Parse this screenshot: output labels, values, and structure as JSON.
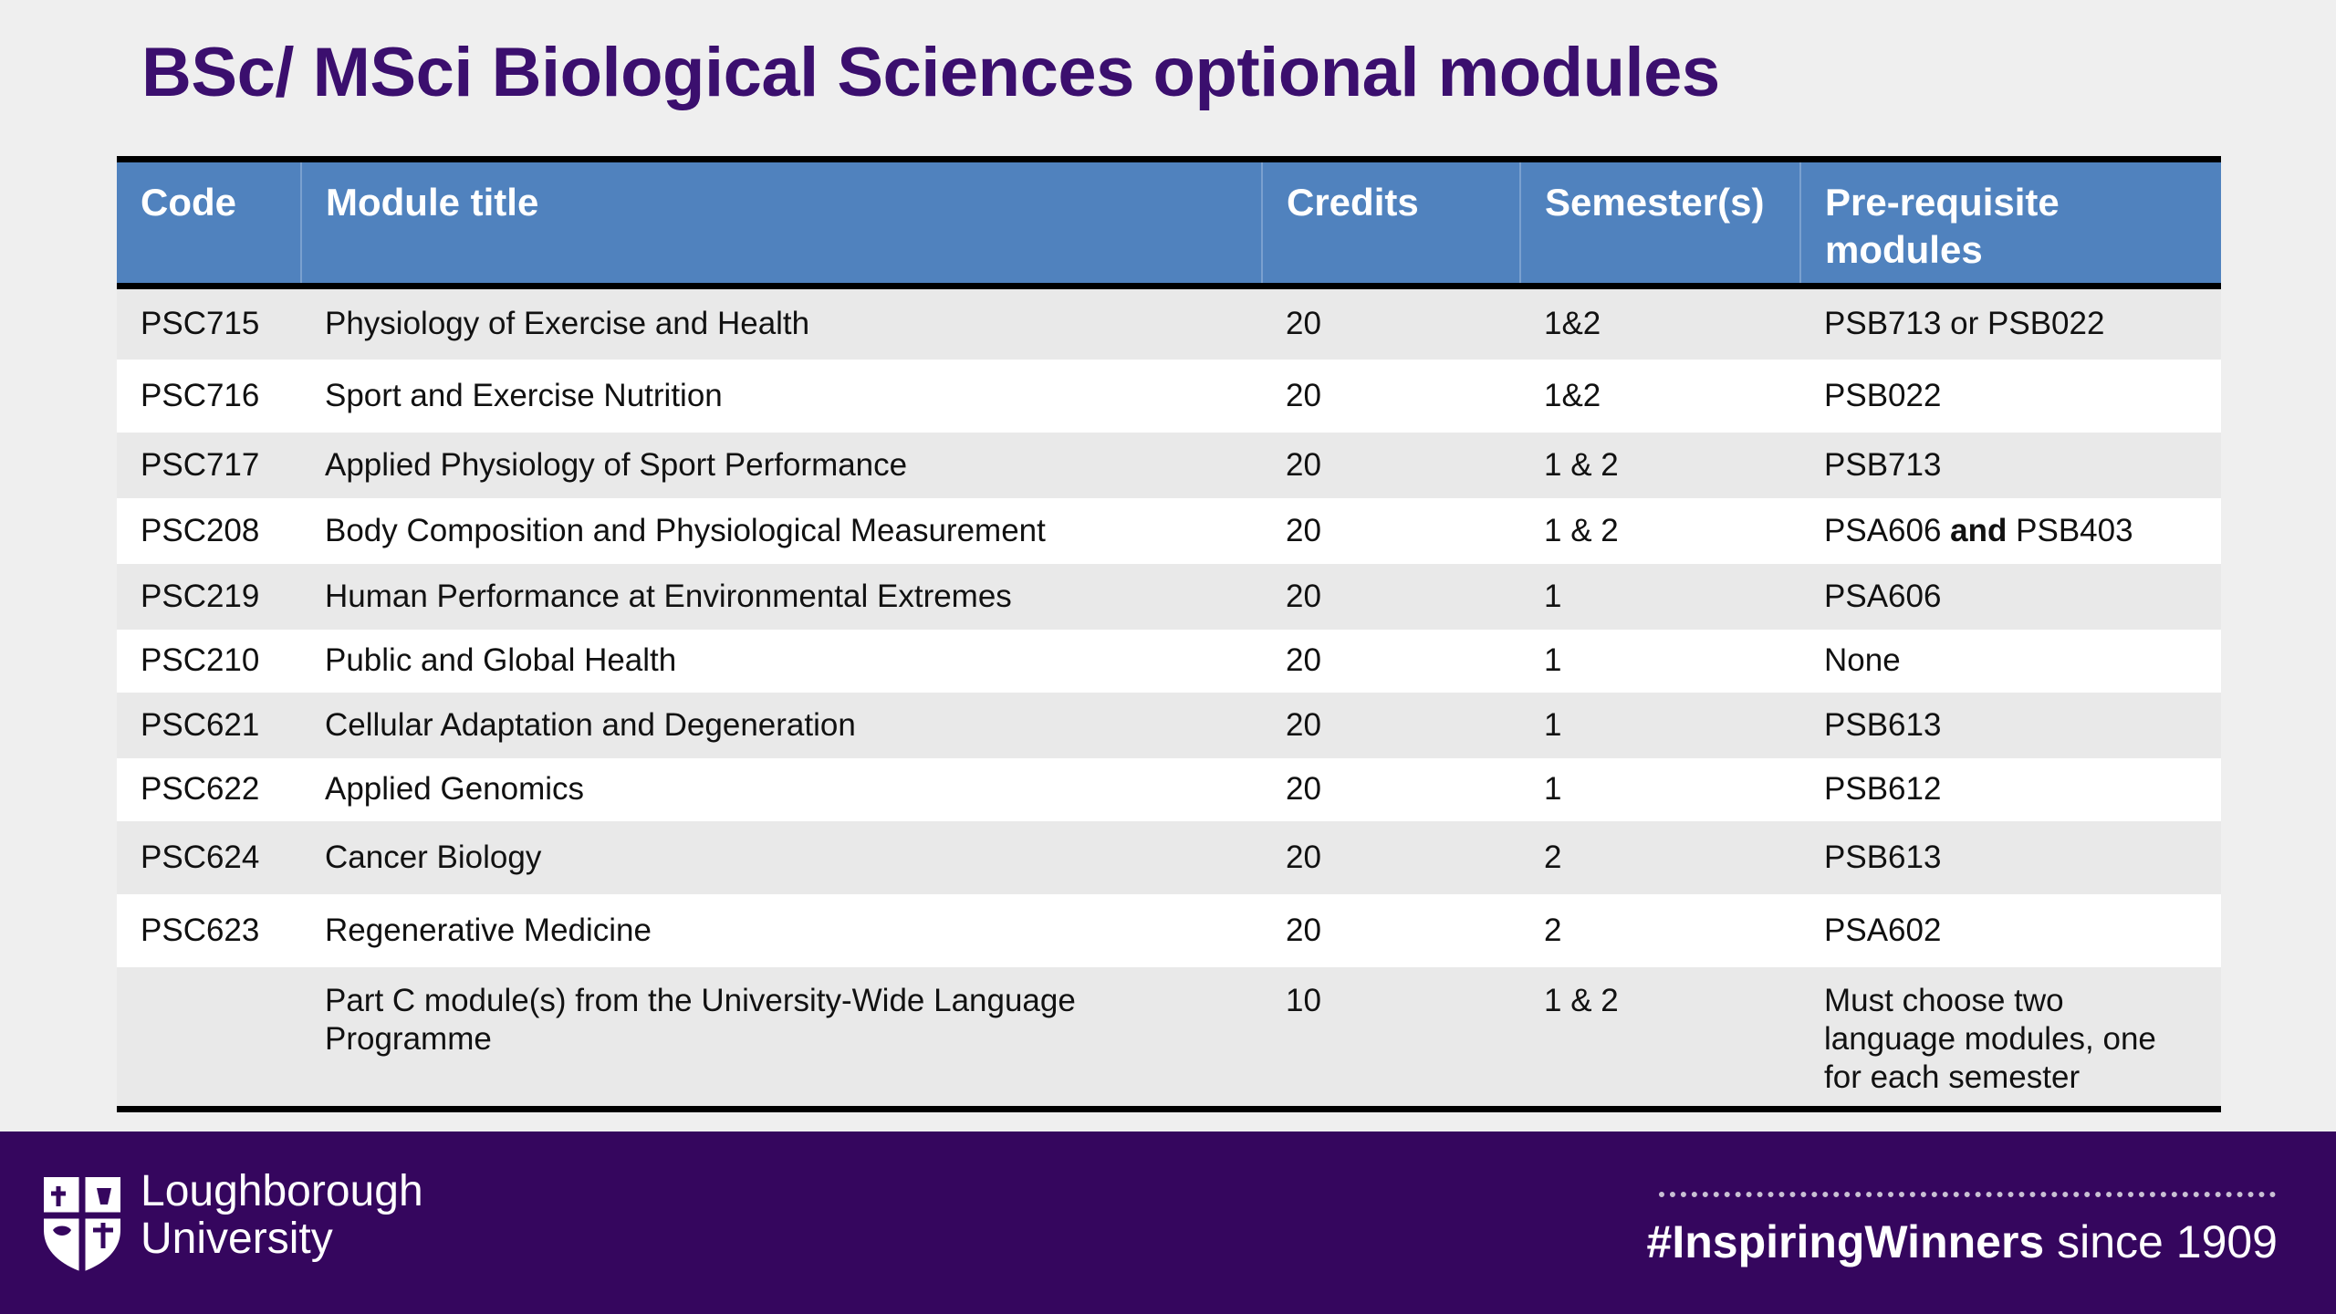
{
  "title": "BSc/ MSci Biological Sciences optional modules",
  "table": {
    "headers": {
      "code": "Code",
      "title": "Module title",
      "credits": "Credits",
      "semesters": "Semester(s)",
      "prereq": "Pre-requisite modules"
    },
    "rows": [
      {
        "code": "PSC715",
        "title": "Physiology of Exercise and Health",
        "credits": "20",
        "semesters": "1&2",
        "prereq": "PSB713 or PSB022"
      },
      {
        "code": "PSC716",
        "title": "Sport and Exercise Nutrition",
        "credits": "20",
        "semesters": "1&2",
        "prereq": "PSB022"
      },
      {
        "code": "PSC717",
        "title": "Applied Physiology of Sport Performance",
        "credits": "20",
        "semesters": "1 & 2",
        "prereq": "PSB713"
      },
      {
        "code": "PSC208",
        "title": "Body Composition and Physiological Measurement",
        "credits": "20",
        "semesters": "1 & 2",
        "prereq_a": "PSA606",
        "prereq_join": "and",
        "prereq_b": "PSB403"
      },
      {
        "code": "PSC219",
        "title": "Human Performance at Environmental Extremes",
        "credits": "20",
        "semesters": "1",
        "prereq": "PSA606"
      },
      {
        "code": "PSC210",
        "title": "Public and Global Health",
        "credits": "20",
        "semesters": "1",
        "prereq": "None"
      },
      {
        "code": "PSC621",
        "title": "Cellular Adaptation and Degeneration",
        "credits": "20",
        "semesters": "1",
        "prereq": "PSB613"
      },
      {
        "code": "PSC622",
        "title": "Applied Genomics",
        "credits": "20",
        "semesters": "1",
        "prereq": "PSB612"
      },
      {
        "code": "PSC624",
        "title": "Cancer Biology",
        "credits": "20",
        "semesters": "2",
        "prereq": "PSB613"
      },
      {
        "code": "PSC623",
        "title": "Regenerative Medicine",
        "credits": "20",
        "semesters": "2",
        "prereq": "PSA602"
      },
      {
        "code": "",
        "title": "Part C module(s) from the University-Wide Language Programme",
        "credits": "10",
        "semesters": "1 & 2",
        "prereq": "Must choose two language modules, one for each semester"
      }
    ]
  },
  "footer": {
    "university_line1": "Loughborough",
    "university_line2": "University",
    "hashtag": "#InspiringWinners",
    "since": "since 1909",
    "crest_icon": "university-crest-icon"
  },
  "colors": {
    "title": "#3b0f6e",
    "header_bg": "#5082be",
    "footer_bg": "#35065e"
  }
}
